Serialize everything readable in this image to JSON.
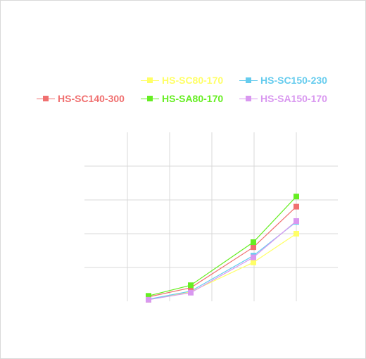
{
  "chart_data": {
    "type": "line",
    "title": "",
    "xlabel": "",
    "ylabel": "",
    "x": [
      1,
      2,
      3,
      4
    ],
    "grid": true,
    "legend_position": "top",
    "series": [
      {
        "name": "HS-SC80-170",
        "color": "#ffff66",
        "values": [
          0.9,
          5.6,
          23.0,
          40.0
        ]
      },
      {
        "name": "HS-SC150-230",
        "color": "#66ccee",
        "values": [
          1.2,
          6.0,
          27.0,
          47.0
        ]
      },
      {
        "name": "HS-SC140-300",
        "color": "#f07070",
        "values": [
          2.6,
          8.0,
          32.0,
          56.0
        ]
      },
      {
        "name": "HS-SA80-170",
        "color": "#66ee22",
        "values": [
          3.2,
          9.5,
          35.0,
          62.0
        ]
      },
      {
        "name": "HS-SA150-170",
        "color": "#d998f0",
        "values": [
          0.9,
          5.1,
          26.0,
          47.5
        ]
      }
    ]
  }
}
